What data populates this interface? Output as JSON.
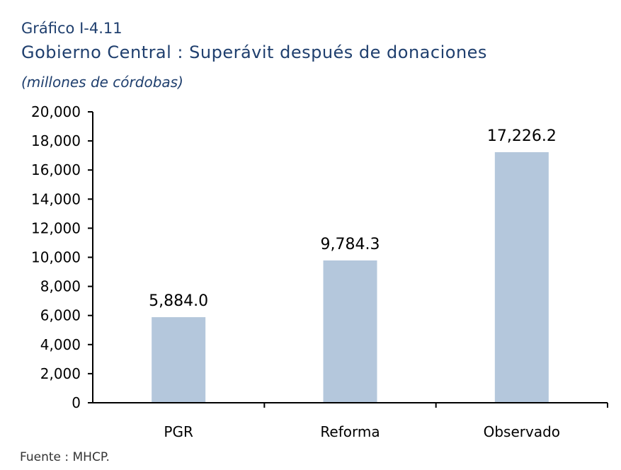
{
  "header": {
    "label": "Gráfico I-4.11",
    "title": "Gobierno Central : Superávit después de donaciones",
    "subtitle": "(millones de córdobas)"
  },
  "footer": {
    "source": "Fuente : MHCP."
  },
  "colors": {
    "bar": "#b4c7dc",
    "heading": "#1f3f6e",
    "axis": "#000000"
  },
  "chart_data": {
    "type": "bar",
    "categories": [
      "PGR",
      "Reforma",
      "Observado"
    ],
    "values": [
      5884.0,
      9784.3,
      17226.2
    ],
    "value_labels": [
      "5,884.0",
      "9,784.3",
      "17,226.2"
    ],
    "ylim": [
      0,
      20000
    ],
    "yticks": [
      0,
      2000,
      4000,
      6000,
      8000,
      10000,
      12000,
      14000,
      16000,
      18000,
      20000
    ],
    "ytick_labels": [
      "0",
      "2,000",
      "4,000",
      "6,000",
      "8,000",
      "10,000",
      "12,000",
      "14,000",
      "16,000",
      "18,000",
      "20,000"
    ],
    "grid": false,
    "legend": "none"
  }
}
